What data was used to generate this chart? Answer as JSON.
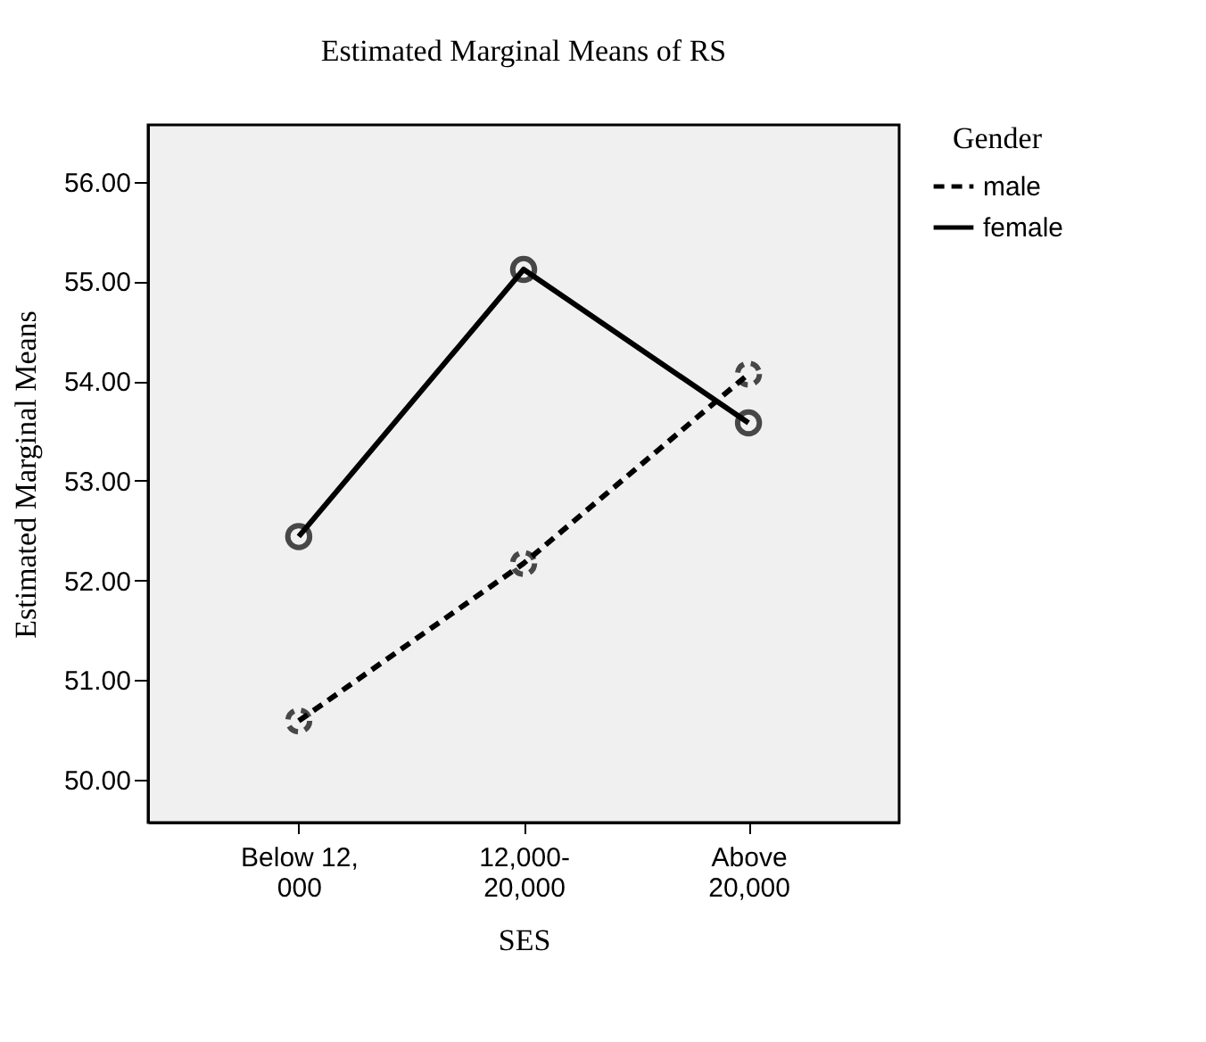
{
  "chart_data": {
    "type": "line",
    "title": "Estimated Marginal Means of RS",
    "xlabel": "SES",
    "ylabel": "Estimated Marginal Means",
    "legend_title": "Gender",
    "categories": [
      "Below 12,\n000",
      "12,000-\n20,000",
      "Above\n20,000"
    ],
    "series": [
      {
        "name": "male",
        "color": "#000000",
        "line_style": "dashed",
        "values": [
          50.59,
          52.17,
          54.07
        ]
      },
      {
        "name": "female",
        "color": "#000000",
        "line_style": "solid",
        "values": [
          52.44,
          55.12,
          53.58
        ]
      }
    ],
    "ylim": [
      49.57,
      56.57
    ],
    "yticks": [
      {
        "value": 50,
        "label": "50.00"
      },
      {
        "value": 51,
        "label": "51.00"
      },
      {
        "value": 52,
        "label": "52.00"
      },
      {
        "value": 53,
        "label": "53.00"
      },
      {
        "value": 54,
        "label": "54.00"
      },
      {
        "value": 55,
        "label": "55.00"
      },
      {
        "value": 56,
        "label": "56.00"
      }
    ],
    "marker": "circle",
    "legend": "top right",
    "grid": false
  }
}
